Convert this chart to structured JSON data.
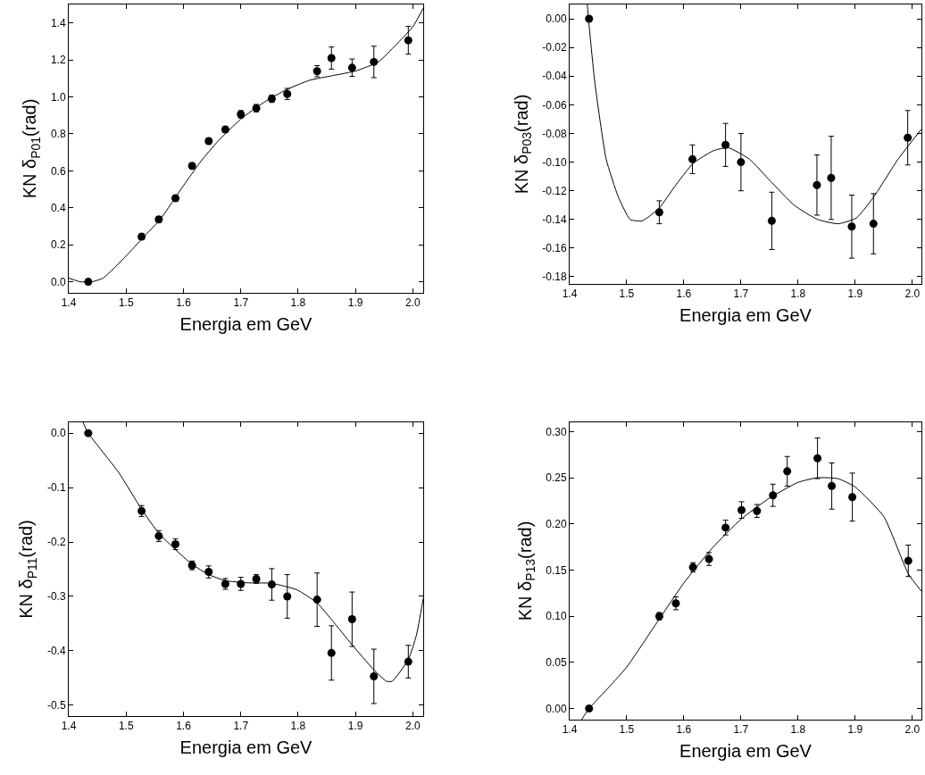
{
  "chart_data": [
    {
      "type": "scatter",
      "xlabel": "Energia em GeV",
      "ylabel": "KN δ$_{P01}$(rad)",
      "grid": false,
      "xlim": [
        1.4,
        2.018
      ],
      "xticks": [
        {
          "value": 1.4,
          "label": "1.4"
        },
        {
          "value": 1.5,
          "label": "1.5"
        },
        {
          "value": 1.6,
          "label": "1.6"
        },
        {
          "value": 1.7,
          "label": "1.7"
        },
        {
          "value": 1.8,
          "label": "1.8"
        },
        {
          "value": 1.9,
          "label": "1.9"
        },
        {
          "value": 2.0,
          "label": "2.0"
        }
      ],
      "ylim": [
        -0.06,
        1.5
      ],
      "yticks": [
        {
          "value": 0,
          "label": "0.0"
        },
        {
          "value": 0.2,
          "label": "0.2"
        },
        {
          "value": 0.4,
          "label": "0.4"
        },
        {
          "value": 0.6,
          "label": "0.6"
        },
        {
          "value": 0.8,
          "label": "0.8"
        },
        {
          "value": 1.0,
          "label": "1.0"
        },
        {
          "value": 1.2,
          "label": "1.2"
        },
        {
          "value": 1.4,
          "label": "1.4"
        }
      ],
      "series": [
        {
          "color": "#000000",
          "marker": "circle",
          "x": [
            1.434,
            1.527,
            1.557,
            1.586,
            1.615,
            1.644,
            1.673,
            1.7,
            1.727,
            1.754,
            1.781,
            1.833,
            1.858,
            1.894,
            1.932,
            1.992
          ],
          "values": [
            0,
            0.244,
            0.337,
            0.452,
            0.627,
            0.761,
            0.824,
            0.906,
            0.939,
            0.99,
            1.016,
            1.139,
            1.21,
            1.158,
            1.189,
            1.306
          ],
          "errors": [
            0.015,
            0.015,
            0.015,
            0.015,
            0.015,
            0.015,
            0.015,
            0.02,
            0.02,
            0.02,
            0.03,
            0.03,
            0.06,
            0.047,
            0.085,
            0.075
          ]
        },
        {
          "type": "line",
          "marker": "none",
          "color": "#000000",
          "x": [
            1.4,
            1.42,
            1.44,
            1.46,
            1.5,
            1.53,
            1.56,
            1.6,
            1.63,
            1.66,
            1.7,
            1.74,
            1.78,
            1.82,
            1.86,
            1.9,
            1.94,
            1.97,
            2.0,
            2.018
          ],
          "values": [
            0.02,
            0.0,
            0.0,
            0.02,
            0.14,
            0.24,
            0.34,
            0.52,
            0.65,
            0.76,
            0.88,
            0.97,
            1.04,
            1.09,
            1.115,
            1.14,
            1.19,
            1.28,
            1.38,
            1.48
          ]
        }
      ]
    },
    {
      "type": "scatter",
      "xlabel": "Energia em GeV",
      "ylabel": "KN δ$_{P03}$(rad)",
      "grid": false,
      "xlim": [
        1.4,
        2.016
      ],
      "xticks": [
        {
          "value": 1.4,
          "label": "1.4"
        },
        {
          "value": 1.5,
          "label": "1.5"
        },
        {
          "value": 1.6,
          "label": "1.6"
        },
        {
          "value": 1.7,
          "label": "1.7"
        },
        {
          "value": 1.8,
          "label": "1.8"
        },
        {
          "value": 1.9,
          "label": "1.9"
        },
        {
          "value": 2.0,
          "label": "2.0"
        }
      ],
      "ylim": [
        -0.185,
        0.01
      ],
      "yticks": [
        {
          "value": 0,
          "label": "0.00"
        },
        {
          "value": -0.02,
          "label": "-0.02"
        },
        {
          "value": -0.04,
          "label": "-0.04"
        },
        {
          "value": -0.06,
          "label": "-0.06"
        },
        {
          "value": -0.08,
          "label": "-0.08"
        },
        {
          "value": -0.1,
          "label": "-0.10"
        },
        {
          "value": -0.12,
          "label": "-0.12"
        },
        {
          "value": -0.14,
          "label": "-0.14"
        },
        {
          "value": -0.16,
          "label": "-0.16"
        },
        {
          "value": -0.18,
          "label": "-0.18"
        }
      ],
      "series": [
        {
          "color": "#000000",
          "marker": "circle",
          "x": [
            1.434,
            1.557,
            1.615,
            1.673,
            1.7,
            1.754,
            1.833,
            1.858,
            1.894,
            1.932,
            1.992
          ],
          "values": [
            0,
            -0.135,
            -0.098,
            -0.088,
            -0.1,
            -0.141,
            -0.116,
            -0.111,
            -0.145,
            -0.143,
            -0.083
          ],
          "errors": [
            null,
            0.008,
            0.01,
            0.015,
            0.02,
            0.02,
            0.021,
            0.029,
            0.022,
            0.021,
            0.019
          ]
        },
        {
          "type": "line",
          "marker": "none",
          "color": "#000000",
          "x": [
            1.431,
            1.433,
            1.444,
            1.464,
            1.485,
            1.506,
            1.527,
            1.557,
            1.584,
            1.616,
            1.652,
            1.678,
            1.715,
            1.751,
            1.793,
            1.834,
            1.87,
            1.902,
            1.933,
            1.975,
            2.016
          ],
          "values": [
            0.01,
            0.0,
            -0.044,
            -0.098,
            -0.124,
            -0.14,
            -0.141,
            -0.132,
            -0.117,
            -0.101,
            -0.092,
            -0.09,
            -0.098,
            -0.113,
            -0.13,
            -0.14,
            -0.143,
            -0.139,
            -0.124,
            -0.098,
            -0.077
          ]
        }
      ]
    },
    {
      "type": "scatter",
      "xlabel": "Energia em GeV",
      "ylabel": "KN δ$_{P11}$(rad)",
      "grid": false,
      "xlim": [
        1.4,
        2.018
      ],
      "xticks": [
        {
          "value": 1.4,
          "label": "1.4"
        },
        {
          "value": 1.5,
          "label": "1.5"
        },
        {
          "value": 1.6,
          "label": "1.6"
        },
        {
          "value": 1.7,
          "label": "1.7"
        },
        {
          "value": 1.8,
          "label": "1.8"
        },
        {
          "value": 1.9,
          "label": "1.9"
        },
        {
          "value": 2.0,
          "label": "2.0"
        }
      ],
      "ylim": [
        -0.52,
        0.02
      ],
      "yticks": [
        {
          "value": 0,
          "label": "0.0"
        },
        {
          "value": -0.1,
          "label": "-0.1"
        },
        {
          "value": -0.2,
          "label": "-0.2"
        },
        {
          "value": -0.3,
          "label": "-0.3"
        },
        {
          "value": -0.4,
          "label": "-0.4"
        },
        {
          "value": -0.5,
          "label": "-0.5"
        }
      ],
      "series": [
        {
          "color": "#000000",
          "marker": "circle",
          "x": [
            1.434,
            1.527,
            1.557,
            1.586,
            1.615,
            1.644,
            1.673,
            1.7,
            1.727,
            1.754,
            1.781,
            1.833,
            1.858,
            1.894,
            1.932,
            1.992
          ],
          "values": [
            0,
            -0.143,
            -0.189,
            -0.204,
            -0.243,
            -0.255,
            -0.277,
            -0.277,
            -0.268,
            -0.278,
            -0.3,
            -0.306,
            -0.404,
            -0.342,
            -0.447,
            -0.42
          ],
          "errors": [
            null,
            0.01,
            0.01,
            0.01,
            0.008,
            0.011,
            0.01,
            0.012,
            0.008,
            0.029,
            0.04,
            0.049,
            0.05,
            0.05,
            0.05,
            0.03
          ]
        },
        {
          "type": "line",
          "marker": "none",
          "color": "#000000",
          "x": [
            1.425,
            1.434,
            1.487,
            1.527,
            1.557,
            1.586,
            1.615,
            1.644,
            1.673,
            1.71,
            1.754,
            1.798,
            1.833,
            1.86,
            1.894,
            1.932,
            1.954,
            1.964,
            1.992,
            2.006,
            2.018
          ],
          "values": [
            0.02,
            0,
            -0.072,
            -0.14,
            -0.184,
            -0.214,
            -0.241,
            -0.26,
            -0.271,
            -0.275,
            -0.276,
            -0.288,
            -0.312,
            -0.345,
            -0.389,
            -0.435,
            -0.456,
            -0.456,
            -0.416,
            -0.372,
            -0.304
          ]
        }
      ]
    },
    {
      "type": "scatter",
      "xlabel": "Energia em GeV",
      "ylabel": "KN δ$_{P13}$(rad)",
      "grid": false,
      "xlim": [
        1.4,
        2.016
      ],
      "xticks": [
        {
          "value": 1.4,
          "label": "1.4"
        },
        {
          "value": 1.5,
          "label": "1.5"
        },
        {
          "value": 1.6,
          "label": "1.6"
        },
        {
          "value": 1.7,
          "label": "1.7"
        },
        {
          "value": 1.8,
          "label": "1.8"
        },
        {
          "value": 1.9,
          "label": "1.9"
        },
        {
          "value": 2.0,
          "label": "2.0"
        }
      ],
      "ylim": [
        -0.012,
        0.31
      ],
      "yticks": [
        {
          "value": 0,
          "label": "0.00"
        },
        {
          "value": 0.05,
          "label": "0.05"
        },
        {
          "value": 0.1,
          "label": "0.10"
        },
        {
          "value": 0.15,
          "label": "0.15"
        },
        {
          "value": 0.2,
          "label": "0.20"
        },
        {
          "value": 0.25,
          "label": "0.25"
        },
        {
          "value": 0.3,
          "label": "0.30"
        }
      ],
      "series": [
        {
          "color": "#000000",
          "marker": "circle",
          "x": [
            1.434,
            1.557,
            1.586,
            1.616,
            1.644,
            1.673,
            1.701,
            1.728,
            1.756,
            1.781,
            1.834,
            1.859,
            1.895,
            1.993
          ],
          "values": [
            0,
            0.1,
            0.114,
            0.153,
            0.162,
            0.196,
            0.215,
            0.214,
            0.231,
            0.257,
            0.271,
            0.241,
            0.229,
            0.16
          ],
          "errors": [
            null,
            0.004,
            0.007,
            0.005,
            0.007,
            0.008,
            0.009,
            0.007,
            0.012,
            0.016,
            0.022,
            0.025,
            0.026,
            0.017
          ]
        },
        {
          "type": "line",
          "marker": "none",
          "color": "#000000",
          "x": [
            1.421,
            1.434,
            1.47,
            1.5,
            1.557,
            1.6,
            1.65,
            1.7,
            1.75,
            1.8,
            1.834,
            1.87,
            1.9,
            1.95,
            1.993,
            2.016
          ],
          "values": [
            -0.012,
            0,
            0.024,
            0.045,
            0.097,
            0.136,
            0.174,
            0.205,
            0.228,
            0.245,
            0.25,
            0.249,
            0.24,
            0.208,
            0.146,
            0.127
          ]
        }
      ]
    }
  ]
}
